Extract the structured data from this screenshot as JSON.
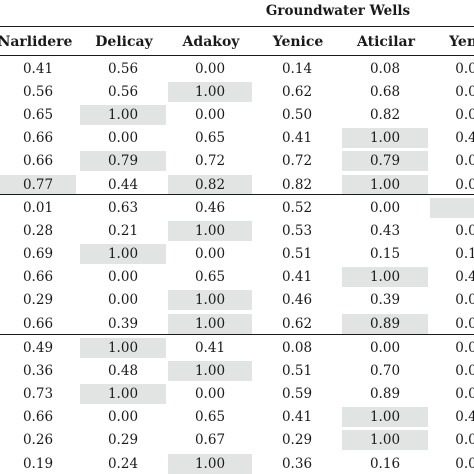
{
  "group_header": "Groundwater Wells",
  "columns": [
    "Narlidere",
    "Delicay",
    "Adakoy",
    "Yenice",
    "Aticilar",
    "Yenic"
  ],
  "sections": [
    {
      "rows": [
        {
          "values": [
            "0.41",
            "0.56",
            "0.00",
            "0.14",
            "0.08",
            "0.0"
          ],
          "highlight": [
            false,
            false,
            false,
            false,
            false,
            false
          ]
        },
        {
          "values": [
            "0.56",
            "0.56",
            "1.00",
            "0.62",
            "0.68",
            "0.0"
          ],
          "highlight": [
            false,
            false,
            true,
            false,
            false,
            false
          ]
        },
        {
          "values": [
            "0.65",
            "1.00",
            "0.00",
            "0.50",
            "0.82",
            "0.0"
          ],
          "highlight": [
            false,
            true,
            false,
            false,
            false,
            false
          ]
        },
        {
          "values": [
            "0.66",
            "0.00",
            "0.65",
            "0.41",
            "1.00",
            "0.4"
          ],
          "highlight": [
            false,
            false,
            false,
            false,
            true,
            false
          ]
        },
        {
          "values": [
            "0.66",
            "0.79",
            "0.72",
            "0.72",
            "0.79",
            "0.0"
          ],
          "highlight": [
            false,
            true,
            false,
            false,
            true,
            false
          ]
        },
        {
          "values": [
            "0.77",
            "0.44",
            "0.82",
            "0.82",
            "1.00",
            "0.0"
          ],
          "highlight": [
            true,
            false,
            true,
            false,
            true,
            false
          ]
        }
      ]
    },
    {
      "rows": [
        {
          "values": [
            "0.01",
            "0.63",
            "0.46",
            "0.52",
            "0.00",
            ""
          ],
          "highlight": [
            false,
            false,
            false,
            false,
            false,
            true
          ]
        },
        {
          "values": [
            "0.28",
            "0.21",
            "1.00",
            "0.53",
            "0.43",
            "0.0"
          ],
          "highlight": [
            false,
            false,
            true,
            false,
            false,
            false
          ]
        },
        {
          "values": [
            "0.69",
            "1.00",
            "0.00",
            "0.51",
            "0.15",
            "0.1"
          ],
          "highlight": [
            false,
            true,
            false,
            false,
            false,
            false
          ]
        },
        {
          "values": [
            "0.66",
            "0.00",
            "0.65",
            "0.41",
            "1.00",
            "0.4"
          ],
          "highlight": [
            false,
            false,
            false,
            false,
            true,
            false
          ]
        },
        {
          "values": [
            "0.29",
            "0.00",
            "1.00",
            "0.46",
            "0.39",
            "0.0"
          ],
          "highlight": [
            false,
            false,
            true,
            false,
            false,
            false
          ]
        },
        {
          "values": [
            "0.66",
            "0.39",
            "1.00",
            "0.62",
            "0.89",
            "0.0"
          ],
          "highlight": [
            false,
            false,
            true,
            false,
            true,
            false
          ]
        }
      ]
    },
    {
      "rows": [
        {
          "values": [
            "0.49",
            "1.00",
            "0.41",
            "0.08",
            "0.00",
            "0.0"
          ],
          "highlight": [
            false,
            true,
            false,
            false,
            false,
            false
          ]
        },
        {
          "values": [
            "0.36",
            "0.48",
            "1.00",
            "0.51",
            "0.70",
            "0.0"
          ],
          "highlight": [
            false,
            false,
            true,
            false,
            false,
            false
          ]
        },
        {
          "values": [
            "0.73",
            "1.00",
            "0.00",
            "0.59",
            "0.89",
            "0.0"
          ],
          "highlight": [
            false,
            true,
            false,
            false,
            false,
            false
          ]
        },
        {
          "values": [
            "0.66",
            "0.00",
            "0.65",
            "0.41",
            "1.00",
            "0.4"
          ],
          "highlight": [
            false,
            false,
            false,
            false,
            true,
            false
          ]
        },
        {
          "values": [
            "0.26",
            "0.29",
            "0.67",
            "0.29",
            "1.00",
            "0.0"
          ],
          "highlight": [
            false,
            false,
            false,
            false,
            true,
            false
          ]
        },
        {
          "values": [
            "0.19",
            "0.24",
            "1.00",
            "0.36",
            "0.16",
            "0.0"
          ],
          "highlight": [
            false,
            false,
            true,
            false,
            false,
            false
          ]
        }
      ]
    }
  ],
  "colors": {
    "highlight": "#e2e4e3",
    "rule": "#1a1a1a",
    "text": "#1a1a1a"
  }
}
